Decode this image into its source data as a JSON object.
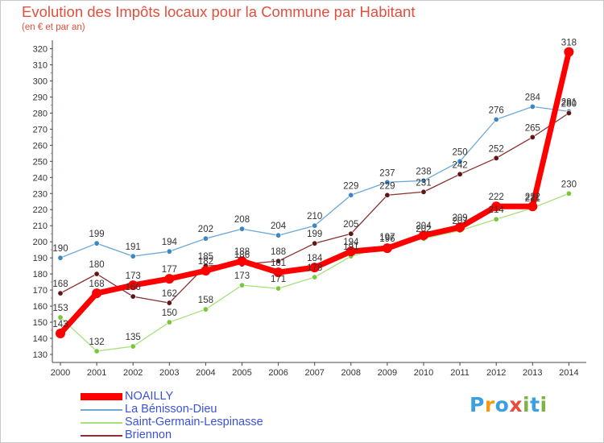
{
  "header": {
    "title": "Evolution des Impôts locaux pour la Commune par Habitant",
    "subtitle": "(en € et par an)"
  },
  "logo": {
    "text": "Proxiti",
    "letters": [
      {
        "ch": "P",
        "color": "#3aa0e0"
      },
      {
        "ch": "r",
        "color": "#f39c12"
      },
      {
        "ch": "o",
        "color": "#3aa0e0"
      },
      {
        "ch": "x",
        "color": "#e74c3c"
      },
      {
        "ch": "i",
        "color": "#7cb342"
      },
      {
        "ch": "t",
        "color": "#3aa0e0"
      },
      {
        "ch": "i",
        "color": "#7cb342"
      }
    ]
  },
  "chart_data": {
    "type": "line",
    "title": "Evolution des Impôts locaux pour la Commune par Habitant",
    "subtitle": "(en € et par an)",
    "categories": [
      "2000",
      "2001",
      "2002",
      "2003",
      "2004",
      "2005",
      "2006",
      "2007",
      "2008",
      "2009",
      "2010",
      "2011",
      "2012",
      "2013",
      "2014"
    ],
    "ylim": [
      130,
      320
    ],
    "ytick_step": 10,
    "grid": false,
    "legend_position": "bottom-left",
    "series": [
      {
        "name": "NOAILLY",
        "color": "#ff0000",
        "style": "thick",
        "values": [
          143,
          168,
          173,
          177,
          182,
          188,
          181,
          184,
          194,
          196,
          204,
          209,
          222,
          222,
          318
        ]
      },
      {
        "name": "La Bénisson-Dieu",
        "color": "#6da8d8",
        "marker": "#3d87c5",
        "style": "thin",
        "values": [
          190,
          199,
          191,
          194,
          202,
          208,
          204,
          210,
          229,
          237,
          238,
          250,
          276,
          284,
          281
        ]
      },
      {
        "name": "Saint-Germain-Lespinasse",
        "color": "#a6e07a",
        "marker": "#7bc73c",
        "style": "thin",
        "values": [
          153,
          132,
          135,
          150,
          158,
          173,
          171,
          178,
          191,
          197,
          202,
          207,
          214,
          221,
          230
        ]
      },
      {
        "name": "Briennon",
        "color": "#8b2f2f",
        "marker": "#5e1616",
        "style": "thin",
        "values": [
          168,
          180,
          166,
          162,
          185,
          186,
          188,
          199,
          205,
          229,
          231,
          242,
          252,
          265,
          280
        ]
      }
    ]
  }
}
